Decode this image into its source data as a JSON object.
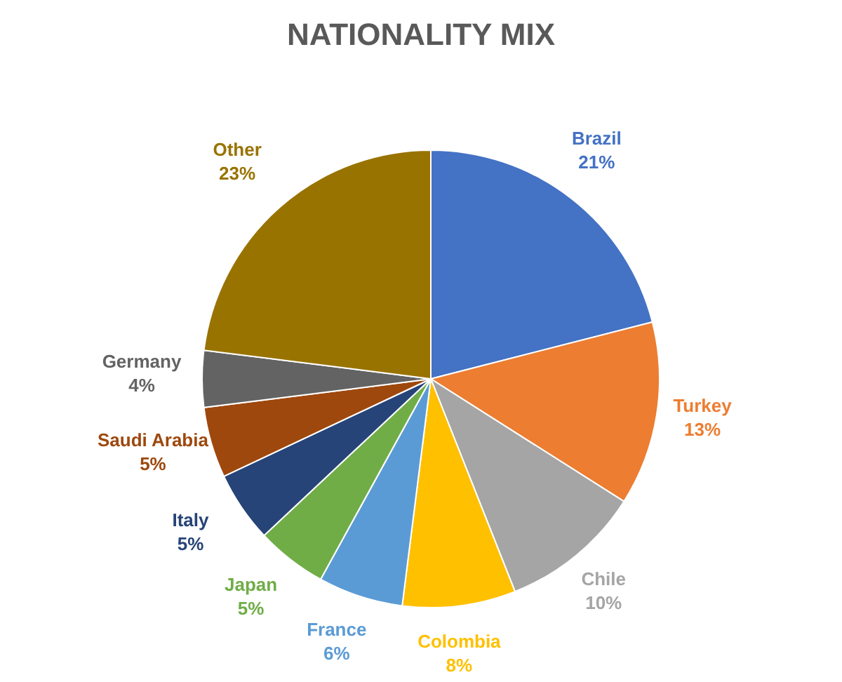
{
  "chart_data": {
    "type": "pie",
    "title": "NATIONALITY MIX",
    "categories": [
      "Brazil",
      "Turkey",
      "Chile",
      "Colombia",
      "France",
      "Japan",
      "Italy",
      "Saudi Arabia",
      "Germany",
      "Other"
    ],
    "values": [
      21,
      13,
      10,
      8,
      6,
      5,
      5,
      5,
      4,
      23
    ],
    "value_labels": [
      "21%",
      "13%",
      "10%",
      "8%",
      "6%",
      "5%",
      "5%",
      "5%",
      "4%",
      "23%"
    ],
    "colors": [
      "#4472c4",
      "#ed7d31",
      "#a5a5a5",
      "#ffc000",
      "#5b9bd5",
      "#70ad47",
      "#264478",
      "#9e480e",
      "#636363",
      "#997300"
    ],
    "legend": false
  }
}
